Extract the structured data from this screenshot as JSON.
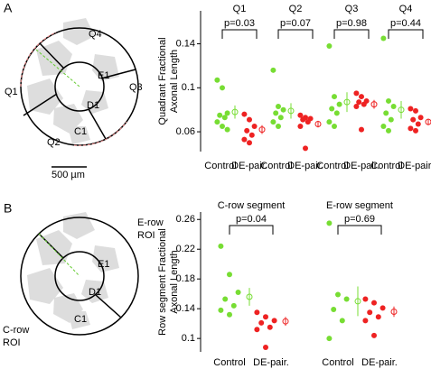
{
  "panels": [
    "A",
    "B"
  ],
  "diagrams": [
    {
      "labels": [
        "Q4",
        "Q3",
        "Q1",
        "Q2",
        "E1",
        "D1",
        "C1"
      ],
      "scale_bar": "500 µm"
    },
    {
      "labels": [
        "E-row",
        "ROI",
        "E1",
        "D1",
        "C1",
        "C-row",
        "ROI"
      ]
    }
  ],
  "chart_data": [
    {
      "type": "strip",
      "ylabel": [
        "Quadrant Fractional",
        "Axonal Length"
      ],
      "colors": [
        "#77dd33",
        "#ee2222"
      ],
      "ylim": [
        0.042,
        0.17
      ],
      "yticks": [
        0.06,
        0.1,
        0.14
      ],
      "groups": [
        {
          "title": "Q1",
          "p": "p=0.03",
          "categories": [
            "Control",
            "DE-pair."
          ],
          "values": [
            [
              0.107,
              0.1,
              0.077,
              0.075,
              0.073,
              0.069,
              0.065,
              0.062
            ],
            [
              0.076,
              0.071,
              0.065,
              0.061,
              0.057,
              0.053,
              0.05
            ]
          ],
          "means": [
            0.078,
            0.062
          ],
          "errors": [
            0.006,
            0.004
          ]
        },
        {
          "title": "Q2",
          "p": "p=0.07",
          "categories": [
            "Control",
            "DE-pair."
          ],
          "values": [
            [
              0.116,
              0.083,
              0.08,
              0.077,
              0.073,
              0.069,
              0.065
            ],
            [
              0.075,
              0.073,
              0.072,
              0.071,
              0.069,
              0.065,
              0.045
            ]
          ],
          "means": [
            0.079,
            0.067
          ],
          "errors": [
            0.007,
            0.003
          ]
        },
        {
          "title": "Q3",
          "p": "p=0.98",
          "categories": [
            "Control",
            "DE-pair."
          ],
          "values": [
            [
              0.138,
              0.092,
              0.085,
              0.081,
              0.077,
              0.069,
              0.065
            ],
            [
              0.095,
              0.092,
              0.088,
              0.087,
              0.085,
              0.083,
              0.062
            ]
          ],
          "means": [
            0.087,
            0.085
          ],
          "errors": [
            0.009,
            0.004
          ]
        },
        {
          "title": "Q4",
          "p": "p=0.44",
          "categories": [
            "Control",
            "DE-pair."
          ],
          "values": [
            [
              0.145,
              0.088,
              0.083,
              0.077,
              0.071,
              0.065,
              0.061
            ],
            [
              0.081,
              0.079,
              0.073,
              0.071,
              0.067,
              0.063,
              0.061
            ]
          ],
          "means": [
            0.08,
            0.069
          ],
          "errors": [
            0.008,
            0.003
          ]
        }
      ]
    },
    {
      "type": "strip",
      "ylabel": [
        "Row segment Fractional",
        "Axonal Length"
      ],
      "colors": [
        "#77dd33",
        "#ee2222"
      ],
      "ylim": [
        0.082,
        0.27
      ],
      "yticks": [
        0.1,
        0.14,
        0.18,
        0.22,
        0.26
      ],
      "groups": [
        {
          "title": "C-row segment",
          "p": "p=0.04",
          "categories": [
            "Control",
            "DE-pair."
          ],
          "values": [
            [
              0.224,
              0.186,
              0.162,
              0.153,
              0.144,
              0.138,
              0.132
            ],
            [
              0.135,
              0.129,
              0.124,
              0.121,
              0.115,
              0.112,
              0.088
            ]
          ],
          "means": [
            0.156,
            0.123
          ],
          "errors": [
            0.012,
            0.006
          ]
        },
        {
          "title": "E-row segment",
          "p": "p=0.69",
          "categories": [
            "Control",
            "DE-pair."
          ],
          "values": [
            [
              0.255,
              0.159,
              0.153,
              0.139,
              0.124,
              0.1
            ],
            [
              0.153,
              0.148,
              0.141,
              0.135,
              0.129,
              0.124,
              0.104
            ]
          ],
          "means": [
            0.15,
            0.136
          ],
          "errors": [
            0.02,
            0.007
          ]
        }
      ]
    }
  ]
}
